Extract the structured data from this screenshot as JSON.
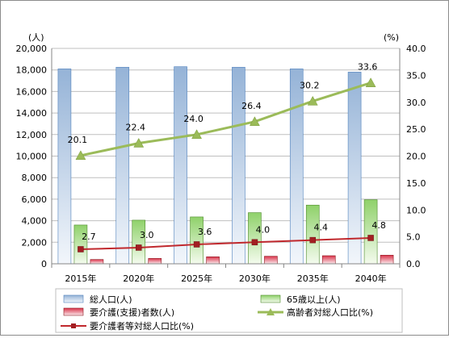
{
  "chart_data": {
    "type": "bar",
    "categories": [
      "2015年",
      "2020年",
      "2025年",
      "2030年",
      "2035年",
      "2040年"
    ],
    "series": [
      {
        "name": "総人口(人)",
        "type": "bar",
        "axis": "left",
        "values": [
          18100,
          18250,
          18300,
          18250,
          18100,
          17800
        ],
        "color": "#95b3d7"
      },
      {
        "name": "65歳以上(人)",
        "type": "bar",
        "axis": "left",
        "values": [
          3600,
          4050,
          4350,
          4750,
          5450,
          5950
        ],
        "color": "#8fd16a"
      },
      {
        "name": "要介護(支援)者数(人)",
        "type": "bar",
        "axis": "left",
        "values": [
          400,
          500,
          650,
          700,
          750,
          800
        ],
        "color": "#d9334a"
      },
      {
        "name": "高齢者対総人口比(%)",
        "type": "line",
        "axis": "right",
        "values": [
          20.1,
          22.4,
          24.0,
          26.4,
          30.2,
          33.6
        ],
        "labels": [
          "20.1",
          "22.4",
          "24.0",
          "26.4",
          "30.2",
          "33.6"
        ],
        "color": "#9bbb59"
      },
      {
        "name": "要介護者等対総人口比(%)",
        "type": "line",
        "axis": "right",
        "values": [
          2.7,
          3.0,
          3.6,
          4.0,
          4.4,
          4.8
        ],
        "labels": [
          "2.7",
          "3.0",
          "3.6",
          "4.0",
          "4.4",
          "4.8"
        ],
        "color": "#c0282d"
      }
    ],
    "y_left": {
      "unit": "(人)",
      "min": 0,
      "max": 20000,
      "step": 2000,
      "tick_labels": [
        "0",
        "2,000",
        "4,000",
        "6,000",
        "8,000",
        "10,000",
        "12,000",
        "14,000",
        "16,000",
        "18,000",
        "20,000"
      ]
    },
    "y_right": {
      "unit": "(%)",
      "min": 0,
      "max": 40,
      "step": 5,
      "tick_labels": [
        "0.0",
        "5.0",
        "10.0",
        "15.0",
        "20.0",
        "25.0",
        "30.0",
        "35.0",
        "40.0"
      ]
    },
    "grid": true,
    "legend_position": "bottom",
    "colors": {
      "frame": "#8c8c8c",
      "grid": "#bfbfbf",
      "axis": "#868686"
    }
  }
}
